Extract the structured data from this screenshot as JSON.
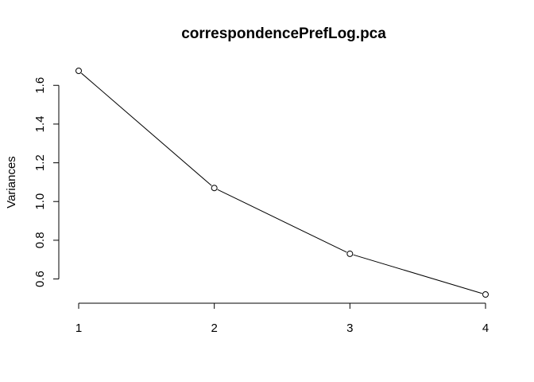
{
  "chart_data": {
    "type": "line",
    "title": "correspondencePrefLog.pca",
    "xlabel": "",
    "ylabel": "Variances",
    "x": [
      1,
      2,
      3,
      4
    ],
    "values": [
      1.675,
      1.07,
      0.73,
      0.52
    ],
    "x_ticks": [
      "1",
      "2",
      "3",
      "4"
    ],
    "y_ticks": [
      0.6,
      0.8,
      1.0,
      1.2,
      1.4,
      1.6
    ],
    "y_tick_labels": [
      "0.6",
      "0.8",
      "1.0",
      "1.2",
      "1.4",
      "1.6"
    ],
    "xlim": [
      1,
      4
    ],
    "ylim": [
      0.52,
      1.675
    ],
    "marker": "open-circle",
    "grid": false,
    "legend": "none",
    "line_color": "#000000"
  }
}
